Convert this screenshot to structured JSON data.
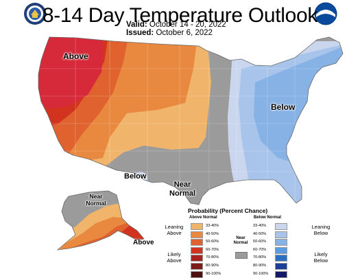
{
  "header": {
    "title": "8-14 Day Temperature Outlook",
    "valid_label": "Valid:",
    "valid_value": "October 14 - 20, 2022",
    "issued_label": "Issued:",
    "issued_value": "October 6, 2022"
  },
  "logos": {
    "left": "department-of-commerce-seal-icon",
    "right": "noaa-logo-icon"
  },
  "map_labels": {
    "above_west": "Above",
    "below_east": "Below",
    "below_south": "Below",
    "near_normal_south": "Near Normal",
    "near_normal_alaska": "Near Normal",
    "above_alaska": "Above"
  },
  "legend": {
    "title": "Probability (Percent Chance)",
    "above_header": "Above Normal",
    "below_header": "Below Normal",
    "near_label": "Near Normal",
    "leaning_above": "Leaning Above",
    "likely_above": "Likely Above",
    "leaning_below": "Leaning Below",
    "likely_below": "Likely Below",
    "above_levels": [
      {
        "label": "33-40%",
        "color": "#f0b46a"
      },
      {
        "label": "40-50%",
        "color": "#e8893f"
      },
      {
        "label": "50-60%",
        "color": "#e0622e"
      },
      {
        "label": "60-70%",
        "color": "#d2331f"
      },
      {
        "label": "70-80%",
        "color": "#a82222"
      },
      {
        "label": "80-90%",
        "color": "#7e1c1c"
      },
      {
        "label": "90-100%",
        "color": "#4d1010"
      }
    ],
    "below_levels": [
      {
        "label": "33-40%",
        "color": "#c9d6ee"
      },
      {
        "label": "40-50%",
        "color": "#a9c4ea"
      },
      {
        "label": "50-60%",
        "color": "#86b2e6"
      },
      {
        "label": "60-70%",
        "color": "#5d9be0"
      },
      {
        "label": "70-80%",
        "color": "#2a6fc2"
      },
      {
        "label": "80-90%",
        "color": "#1c3f9a"
      },
      {
        "label": "90-100%",
        "color": "#141a66"
      }
    ],
    "near_color": "#9b9b9b"
  }
}
